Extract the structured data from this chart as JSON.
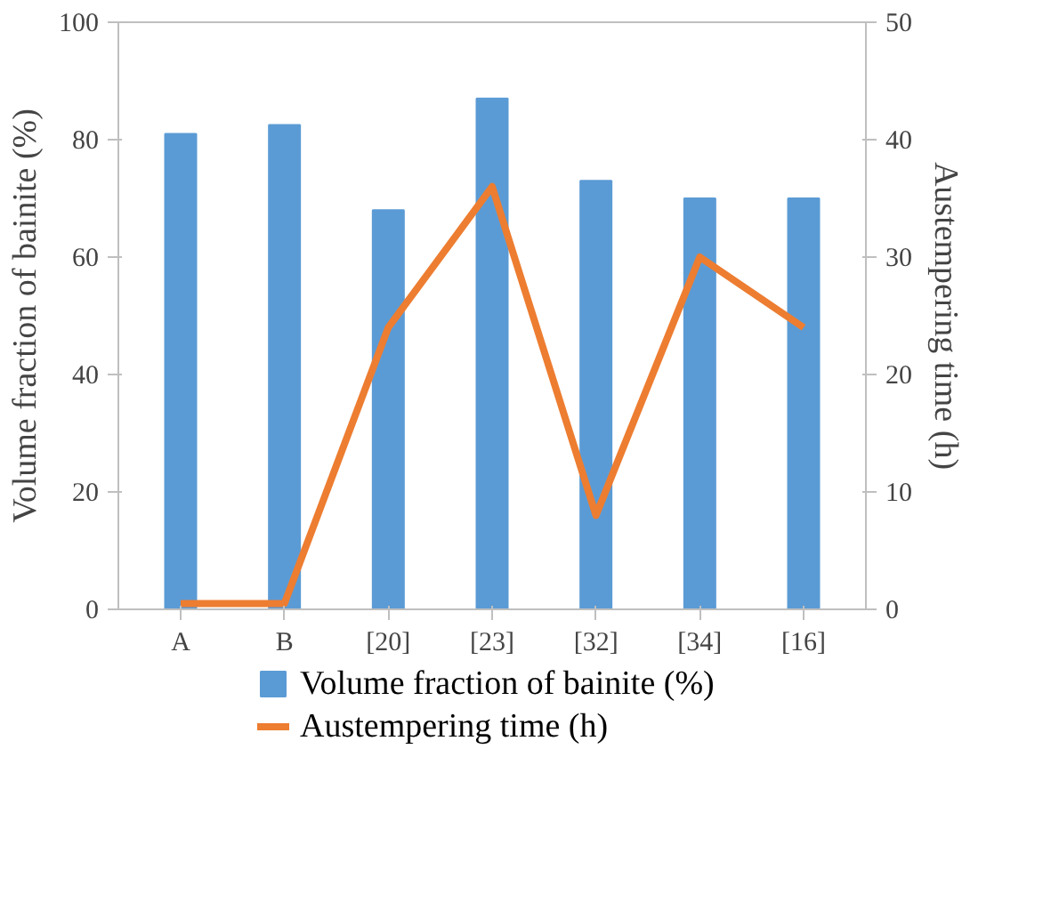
{
  "chart_data": {
    "type": "bar",
    "categories": [
      "A",
      "B",
      "[20]",
      "[23]",
      "[32]",
      "[34]",
      "[16]"
    ],
    "ylabel": "Volume fraction of bainite (%)",
    "y2label": "Austempering time (h)",
    "ylim": [
      0,
      100
    ],
    "yticks": [
      0,
      20,
      40,
      60,
      80,
      100
    ],
    "y2lim": [
      0,
      50
    ],
    "y2ticks": [
      0,
      10,
      20,
      30,
      40,
      50
    ],
    "grid": false,
    "legend": "bottom",
    "series": [
      {
        "name": "Volume fraction of bainite (%)",
        "color": "#5b9bd5",
        "values": [
          81,
          82.5,
          68,
          87,
          73,
          70,
          70
        ]
      },
      {
        "name": "Austempering time (h)",
        "type": "line",
        "axis": "y2",
        "color": "#ed7d31",
        "values": [
          0.5,
          0.5,
          24,
          36,
          8,
          30,
          24
        ]
      }
    ]
  }
}
